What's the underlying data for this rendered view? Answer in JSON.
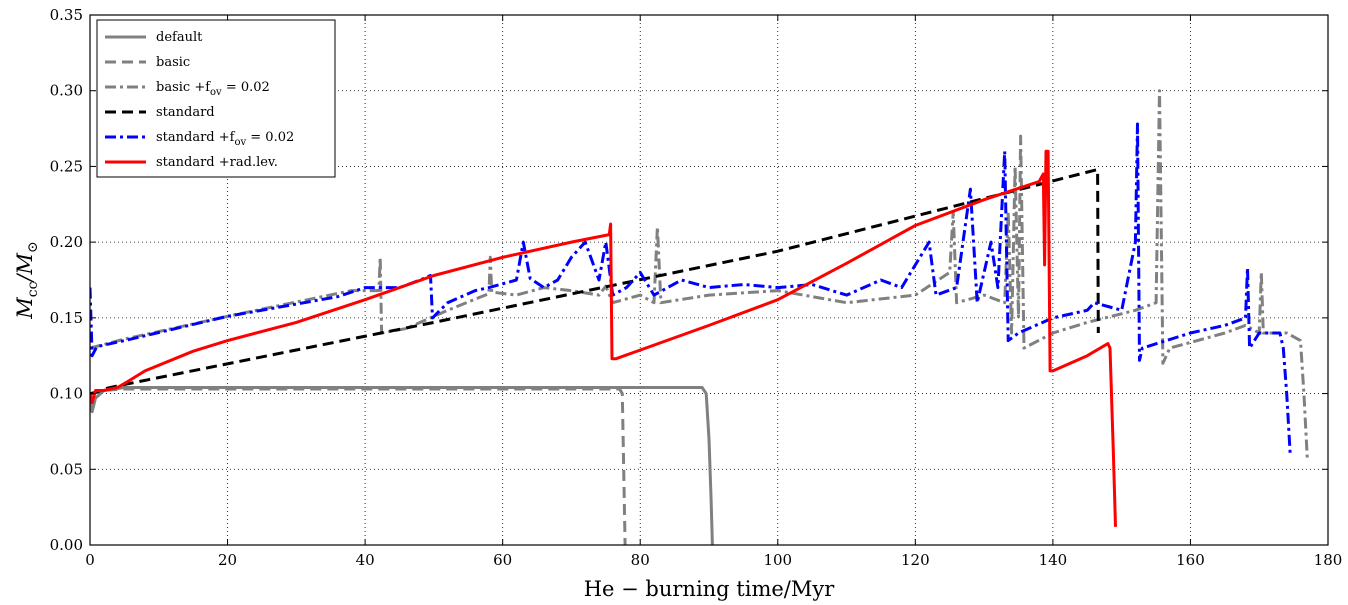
{
  "chart_data": {
    "type": "line",
    "xlabel": "He − burning time/Myr",
    "ylabel": "Mcc/M⊙",
    "ylabel_main": "M",
    "ylabel_sub": "cc",
    "ylabel_sep": "/M",
    "ylabel_sub2": "⊙",
    "xlim": [
      0,
      180
    ],
    "ylim": [
      0,
      0.35
    ],
    "x_ticks": [
      0,
      20,
      40,
      60,
      80,
      100,
      120,
      140,
      160,
      180
    ],
    "y_ticks": [
      0.0,
      0.05,
      0.1,
      0.15,
      0.2,
      0.25,
      0.3,
      0.35
    ],
    "x_tick_labels": [
      "0",
      "20",
      "40",
      "60",
      "80",
      "100",
      "120",
      "140",
      "160",
      "180"
    ],
    "y_tick_labels": [
      "0.00",
      "0.05",
      "0.10",
      "0.15",
      "0.20",
      "0.25",
      "0.30",
      "0.35"
    ],
    "grid": true,
    "legend_position": "top-left",
    "series": [
      {
        "name": "default",
        "color": "#808080",
        "dash": "solid",
        "width": 3,
        "points": [
          [
            0,
            0.095
          ],
          [
            0.3,
            0.088
          ],
          [
            0.8,
            0.097
          ],
          [
            2,
            0.102
          ],
          [
            5,
            0.104
          ],
          [
            20,
            0.104
          ],
          [
            60,
            0.104
          ],
          [
            89,
            0.104
          ],
          [
            89.6,
            0.1
          ],
          [
            90.0,
            0.07
          ],
          [
            90.3,
            0.03
          ],
          [
            90.5,
            0.0
          ]
        ]
      },
      {
        "name": "basic",
        "color": "#808080",
        "dash": "11,6",
        "width": 3,
        "points": [
          [
            0,
            0.1
          ],
          [
            0.5,
            0.1
          ],
          [
            1.5,
            0.102
          ],
          [
            5,
            0.103
          ],
          [
            20,
            0.103
          ],
          [
            50,
            0.103
          ],
          [
            77,
            0.103
          ],
          [
            77.4,
            0.1
          ],
          [
            77.6,
            0.05
          ],
          [
            77.8,
            0.0
          ]
        ]
      },
      {
        "name": "basic +f_ov = 0.02",
        "color": "#808080",
        "dash": "11,4,3,4",
        "width": 3,
        "points": [
          [
            0,
            0.13
          ],
          [
            5,
            0.136
          ],
          [
            20,
            0.151
          ],
          [
            38,
            0.168
          ],
          [
            42,
            0.168
          ],
          [
            42.2,
            0.19
          ],
          [
            42.4,
            0.14
          ],
          [
            46,
            0.143
          ],
          [
            52,
            0.155
          ],
          [
            58,
            0.166
          ],
          [
            58.2,
            0.19
          ],
          [
            58.4,
            0.167
          ],
          [
            62,
            0.165
          ],
          [
            66,
            0.17
          ],
          [
            70,
            0.168
          ],
          [
            74,
            0.165
          ],
          [
            75,
            0.171
          ],
          [
            76,
            0.16
          ],
          [
            80,
            0.165
          ],
          [
            82,
            0.16
          ],
          [
            82.5,
            0.21
          ],
          [
            83,
            0.16
          ],
          [
            90,
            0.165
          ],
          [
            100,
            0.168
          ],
          [
            110,
            0.16
          ],
          [
            120,
            0.165
          ],
          [
            125,
            0.18
          ],
          [
            125.5,
            0.22
          ],
          [
            126,
            0.16
          ],
          [
            130,
            0.165
          ],
          [
            133,
            0.16
          ],
          [
            133.5,
            0.22
          ],
          [
            134,
            0.14
          ],
          [
            134.5,
            0.25
          ],
          [
            135,
            0.15
          ],
          [
            135.3,
            0.27
          ],
          [
            135.8,
            0.13
          ],
          [
            140,
            0.14
          ],
          [
            145,
            0.147
          ],
          [
            152,
            0.155
          ],
          [
            155,
            0.16
          ],
          [
            155.5,
            0.3
          ],
          [
            156,
            0.12
          ],
          [
            157,
            0.13
          ],
          [
            165,
            0.14
          ],
          [
            168,
            0.145
          ],
          [
            170,
            0.14
          ],
          [
            170.3,
            0.18
          ],
          [
            170.6,
            0.14
          ],
          [
            174,
            0.14
          ],
          [
            176,
            0.135
          ],
          [
            176.5,
            0.1
          ],
          [
            177,
            0.056
          ]
        ]
      },
      {
        "name": "standard",
        "color": "#000000",
        "dash": "11,6",
        "width": 3,
        "points": [
          [
            0,
            0.1
          ],
          [
            1,
            0.101
          ],
          [
            2,
            0.103
          ],
          [
            5,
            0.106
          ],
          [
            50,
            0.147
          ],
          [
            100,
            0.194
          ],
          [
            146.5,
            0.248
          ],
          [
            146.6,
            0.14
          ]
        ]
      },
      {
        "name": "standard +f_ov = 0.02",
        "color": "#0000ff",
        "dash": "11,4,3,4",
        "width": 3,
        "points": [
          [
            0,
            0.17
          ],
          [
            0.3,
            0.125
          ],
          [
            1,
            0.131
          ],
          [
            5,
            0.135
          ],
          [
            20,
            0.151
          ],
          [
            36,
            0.164
          ],
          [
            40,
            0.17
          ],
          [
            45,
            0.17
          ],
          [
            48,
            0.175
          ],
          [
            49.5,
            0.178
          ],
          [
            49.8,
            0.15
          ],
          [
            52,
            0.16
          ],
          [
            56,
            0.168
          ],
          [
            58,
            0.17
          ],
          [
            62,
            0.175
          ],
          [
            63,
            0.2
          ],
          [
            64,
            0.176
          ],
          [
            66,
            0.17
          ],
          [
            68,
            0.175
          ],
          [
            70,
            0.19
          ],
          [
            72,
            0.2
          ],
          [
            74,
            0.175
          ],
          [
            75,
            0.2
          ],
          [
            76,
            0.165
          ],
          [
            78,
            0.17
          ],
          [
            80,
            0.18
          ],
          [
            82,
            0.165
          ],
          [
            86,
            0.175
          ],
          [
            90,
            0.17
          ],
          [
            95,
            0.172
          ],
          [
            100,
            0.17
          ],
          [
            105,
            0.172
          ],
          [
            110,
            0.165
          ],
          [
            115,
            0.175
          ],
          [
            118,
            0.17
          ],
          [
            122,
            0.2
          ],
          [
            123,
            0.165
          ],
          [
            126,
            0.17
          ],
          [
            128,
            0.235
          ],
          [
            129,
            0.16
          ],
          [
            131,
            0.2
          ],
          [
            132,
            0.17
          ],
          [
            133,
            0.26
          ],
          [
            133.5,
            0.135
          ],
          [
            135,
            0.14
          ],
          [
            140,
            0.15
          ],
          [
            145,
            0.155
          ],
          [
            146,
            0.16
          ],
          [
            150,
            0.155
          ],
          [
            152,
            0.2
          ],
          [
            152.3,
            0.278
          ],
          [
            152.6,
            0.122
          ],
          [
            153,
            0.13
          ],
          [
            160,
            0.14
          ],
          [
            165,
            0.145
          ],
          [
            168,
            0.15
          ],
          [
            168.3,
            0.183
          ],
          [
            168.6,
            0.13
          ],
          [
            170,
            0.14
          ],
          [
            173,
            0.14
          ],
          [
            173.5,
            0.13
          ],
          [
            174,
            0.1
          ],
          [
            174.5,
            0.06
          ]
        ]
      },
      {
        "name": "standard +rad.lev.",
        "color": "#ff0000",
        "dash": "solid",
        "width": 3,
        "points": [
          [
            0,
            0.1
          ],
          [
            0.3,
            0.094
          ],
          [
            0.8,
            0.102
          ],
          [
            2,
            0.102
          ],
          [
            4,
            0.104
          ],
          [
            5.5,
            0.108
          ],
          [
            8,
            0.115
          ],
          [
            15,
            0.128
          ],
          [
            20,
            0.135
          ],
          [
            30,
            0.147
          ],
          [
            40,
            0.162
          ],
          [
            50,
            0.178
          ],
          [
            60,
            0.19
          ],
          [
            70,
            0.2
          ],
          [
            75.5,
            0.205
          ],
          [
            75.7,
            0.212
          ],
          [
            75.9,
            0.123
          ],
          [
            76.5,
            0.123
          ],
          [
            90,
            0.145
          ],
          [
            100,
            0.162
          ],
          [
            110,
            0.186
          ],
          [
            120,
            0.211
          ],
          [
            130,
            0.228
          ],
          [
            138,
            0.24
          ],
          [
            138.6,
            0.245
          ],
          [
            138.8,
            0.185
          ],
          [
            139,
            0.26
          ],
          [
            139.3,
            0.26
          ],
          [
            139.6,
            0.115
          ],
          [
            140,
            0.115
          ],
          [
            145,
            0.125
          ],
          [
            148,
            0.133
          ],
          [
            148.3,
            0.13
          ],
          [
            148.8,
            0.06
          ],
          [
            149.1,
            0.012
          ]
        ]
      }
    ],
    "legend": [
      {
        "label": "default"
      },
      {
        "label": "basic"
      },
      {
        "label": "basic +f",
        "sub": "ov",
        "tail": " = 0.02"
      },
      {
        "label": "standard"
      },
      {
        "label": "standard +f",
        "sub": "ov",
        "tail": " = 0.02"
      },
      {
        "label": "standard  +rad.lev."
      }
    ]
  }
}
